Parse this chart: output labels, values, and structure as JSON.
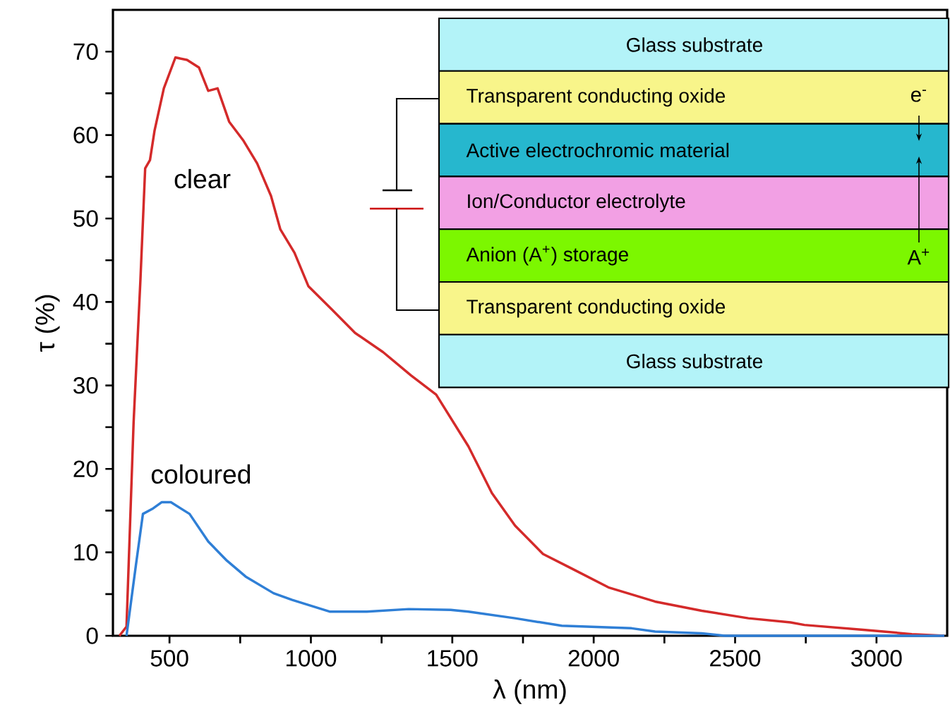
{
  "chart_data": {
    "type": "line",
    "xlabel": "λ (nm)",
    "ylabel": "τ (%)",
    "xlim": [
      300,
      3250
    ],
    "ylim": [
      0,
      75
    ],
    "xticks": [
      500,
      {
        "value": 750,
        "label": null
      },
      1000,
      {
        "value": 1250,
        "label": null
      },
      1500,
      {
        "value": 1750,
        "label": null
      },
      2000,
      {
        "value": 2250,
        "label": null
      },
      2500,
      {
        "value": 2750,
        "label": null
      },
      3000
    ],
    "yticks": [
      0,
      {
        "value": 5,
        "label": null
      },
      10,
      {
        "value": 15,
        "label": null
      },
      20,
      {
        "value": 25,
        "label": null
      },
      30,
      {
        "value": 35,
        "label": null
      },
      40,
      {
        "value": 45,
        "label": null
      },
      50,
      {
        "value": 55,
        "label": null
      },
      60,
      {
        "value": 65,
        "label": null
      },
      70
    ],
    "grid": false,
    "legend": false,
    "marker": "none",
    "line_style": "solid",
    "series": [
      {
        "name": "clear",
        "color": "#d42a2a",
        "x": [
          323,
          348,
          373,
          397,
          414,
          431,
          447,
          480,
          521,
          562,
          604,
          637,
          670,
          711,
          760,
          810,
          859,
          892,
          942,
          991,
          1074,
          1156,
          1255,
          1354,
          1443,
          1557,
          1640,
          1722,
          1821,
          1920,
          2052,
          2217,
          2382,
          2547,
          2696,
          2745,
          2960,
          3125,
          3240
        ],
        "values": [
          0,
          1.1,
          25.5,
          42.5,
          56,
          57,
          60.5,
          65.6,
          69.3,
          69,
          68.1,
          65.3,
          65.6,
          61.6,
          59.4,
          56.6,
          52.7,
          48.7,
          45.9,
          41.9,
          39.1,
          36.3,
          34,
          31.2,
          28.9,
          22.7,
          17.1,
          13.2,
          9.8,
          8.1,
          5.8,
          4.1,
          3.0,
          2.1,
          1.6,
          1.3,
          0.7,
          0.2,
          0
        ]
      },
      {
        "name": "coloured",
        "color": "#2f7fd6",
        "x": [
          348,
          381,
          406,
          439,
          472,
          505,
          571,
          637,
          703,
          769,
          868,
          934,
          1066,
          1198,
          1346,
          1494,
          1557,
          1722,
          1887,
          2134,
          2217,
          2382,
          2464,
          3240
        ],
        "values": [
          0,
          8.4,
          14.6,
          15.2,
          16,
          16,
          14.6,
          11.3,
          9.0,
          7.1,
          5.1,
          4.3,
          2.9,
          2.9,
          3.2,
          3.1,
          2.9,
          2.1,
          1.2,
          0.9,
          0.5,
          0.3,
          0,
          0
        ]
      }
    ],
    "annotations": [
      "Glass substrate",
      "Transparent conducting oxide",
      "Active electrochromic material",
      "Ion/Conductor electrolyte",
      "Anion (A$^{+}$) storage",
      "Transparent conducting oxide",
      "Glass substrate",
      "e$^{-}$",
      "A$^{+}$"
    ]
  }
}
